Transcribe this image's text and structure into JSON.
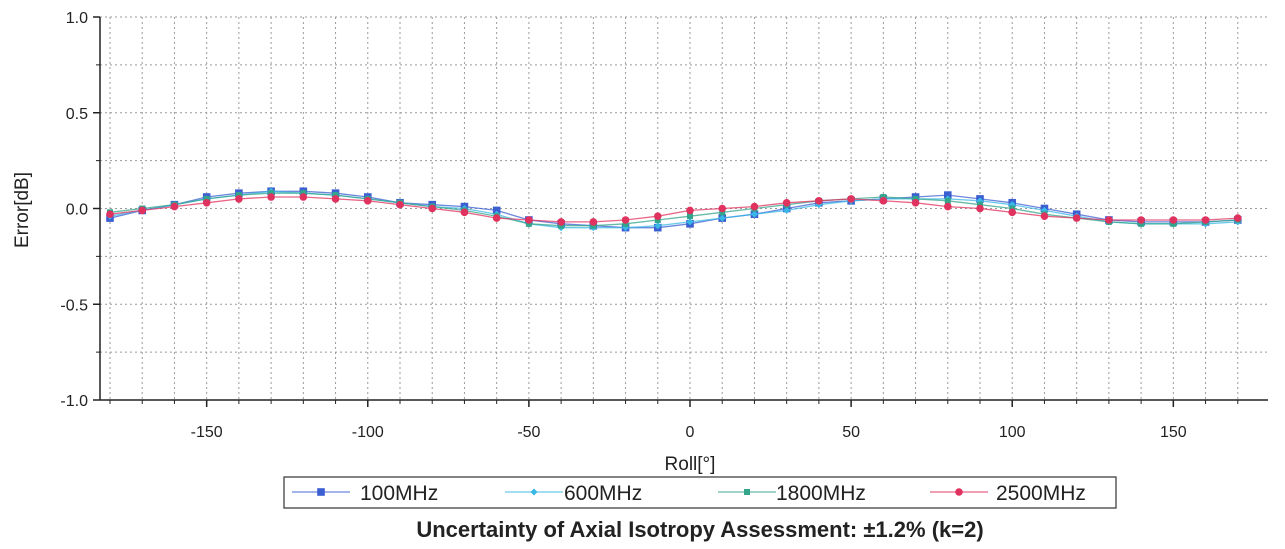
{
  "colors": {
    "100MHz": "#3b5fd1",
    "600MHz": "#39b7e6",
    "1800MHz": "#33a58a",
    "2500MHz": "#e0325e",
    "grid": "#9a9a9a",
    "axis": "#222222"
  },
  "chart_data": {
    "type": "line",
    "title": "",
    "xlabel": "Roll[°]",
    "ylabel": "Error[dB]",
    "xlim": [
      -180,
      180
    ],
    "ylim": [
      -1.0,
      1.0
    ],
    "grid": true,
    "legend_position": "bottom",
    "xticks": [
      -150,
      -100,
      -50,
      0,
      50,
      100,
      150
    ],
    "xtick_labels": [
      "-150",
      "-100",
      "-50",
      "0",
      "50",
      "100",
      "150"
    ],
    "yticks": [
      -1.0,
      -0.5,
      0.0,
      0.5,
      1.0
    ],
    "ytick_labels": [
      "-1.0",
      "-0.5",
      "0.0",
      "0.5",
      "1.0"
    ],
    "x": [
      -180,
      -170,
      -160,
      -150,
      -140,
      -130,
      -120,
      -110,
      -100,
      -90,
      -80,
      -70,
      -60,
      -50,
      -40,
      -30,
      -20,
      -10,
      0,
      10,
      20,
      30,
      40,
      50,
      60,
      70,
      80,
      90,
      100,
      110,
      120,
      130,
      140,
      150,
      160,
      170
    ],
    "series": [
      {
        "name": "100MHz",
        "values": [
          -0.05,
          -0.01,
          0.02,
          0.06,
          0.08,
          0.09,
          0.09,
          0.08,
          0.06,
          0.03,
          0.02,
          0.01,
          -0.01,
          -0.06,
          -0.08,
          -0.09,
          -0.1,
          -0.1,
          -0.08,
          -0.05,
          -0.03,
          0.0,
          0.03,
          0.04,
          0.05,
          0.06,
          0.07,
          0.05,
          0.03,
          0.0,
          -0.03,
          -0.06,
          -0.07,
          -0.07,
          -0.07,
          -0.06
        ]
      },
      {
        "name": "600MHz",
        "values": [
          -0.04,
          -0.01,
          0.02,
          0.05,
          0.07,
          0.09,
          0.08,
          0.07,
          0.05,
          0.03,
          0.01,
          0.0,
          -0.03,
          -0.08,
          -0.1,
          -0.1,
          -0.1,
          -0.09,
          -0.07,
          -0.05,
          -0.03,
          -0.01,
          0.02,
          0.04,
          0.05,
          0.05,
          0.05,
          0.04,
          0.02,
          -0.01,
          -0.04,
          -0.07,
          -0.08,
          -0.08,
          -0.08,
          -0.07
        ]
      },
      {
        "name": "1800MHz",
        "values": [
          -0.02,
          0.0,
          0.02,
          0.05,
          0.07,
          0.08,
          0.08,
          0.07,
          0.05,
          0.03,
          0.01,
          -0.01,
          -0.04,
          -0.08,
          -0.09,
          -0.09,
          -0.08,
          -0.06,
          -0.04,
          -0.02,
          0.0,
          0.02,
          0.04,
          0.05,
          0.06,
          0.05,
          0.04,
          0.02,
          0.0,
          -0.03,
          -0.05,
          -0.07,
          -0.08,
          -0.08,
          -0.07,
          -0.06
        ]
      },
      {
        "name": "2500MHz",
        "values": [
          -0.03,
          -0.01,
          0.01,
          0.03,
          0.05,
          0.06,
          0.06,
          0.05,
          0.04,
          0.02,
          0.0,
          -0.02,
          -0.05,
          -0.06,
          -0.07,
          -0.07,
          -0.06,
          -0.04,
          -0.01,
          0.0,
          0.01,
          0.03,
          0.04,
          0.05,
          0.04,
          0.03,
          0.01,
          0.0,
          -0.02,
          -0.04,
          -0.05,
          -0.06,
          -0.06,
          -0.06,
          -0.06,
          -0.05
        ]
      }
    ],
    "caption": "Uncertainty of Axial Isotropy Assessment: ±1.2% (k=2)"
  }
}
